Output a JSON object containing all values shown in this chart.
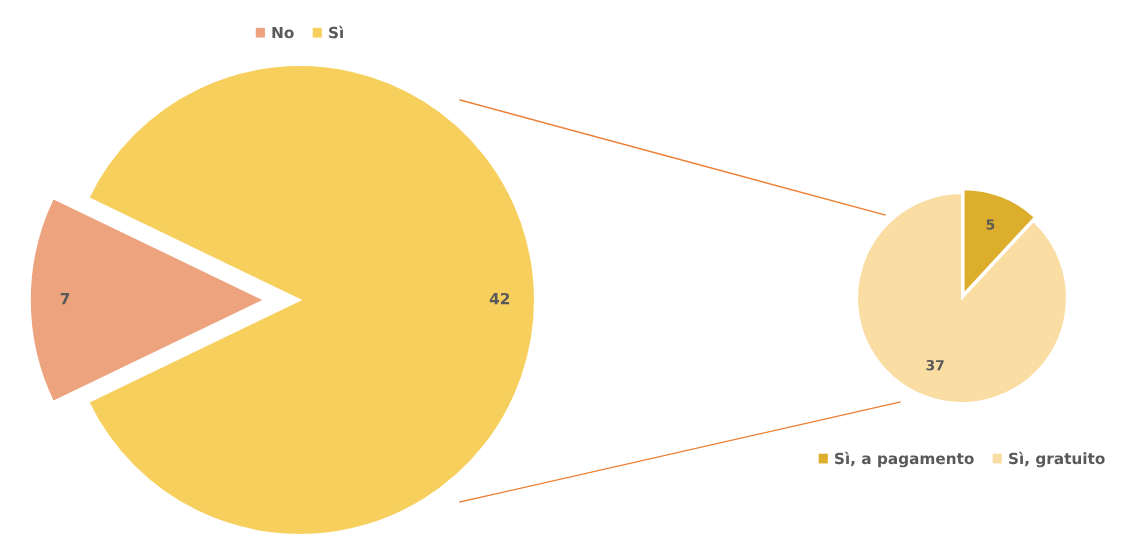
{
  "chart_data": [
    {
      "type": "pie",
      "categories": [
        "No",
        "Sì"
      ],
      "values": [
        7,
        42
      ],
      "colors": [
        "#eda47e",
        "#f6cf5c"
      ],
      "data_labels": true,
      "legend": "top"
    },
    {
      "type": "pie",
      "categories": [
        "Sì, a pagamento",
        "Sì, gratuito"
      ],
      "values": [
        5,
        37
      ],
      "colors": [
        "#dcae2c",
        "#f9dda3"
      ],
      "data_labels": true,
      "legend": "bottom"
    }
  ]
}
